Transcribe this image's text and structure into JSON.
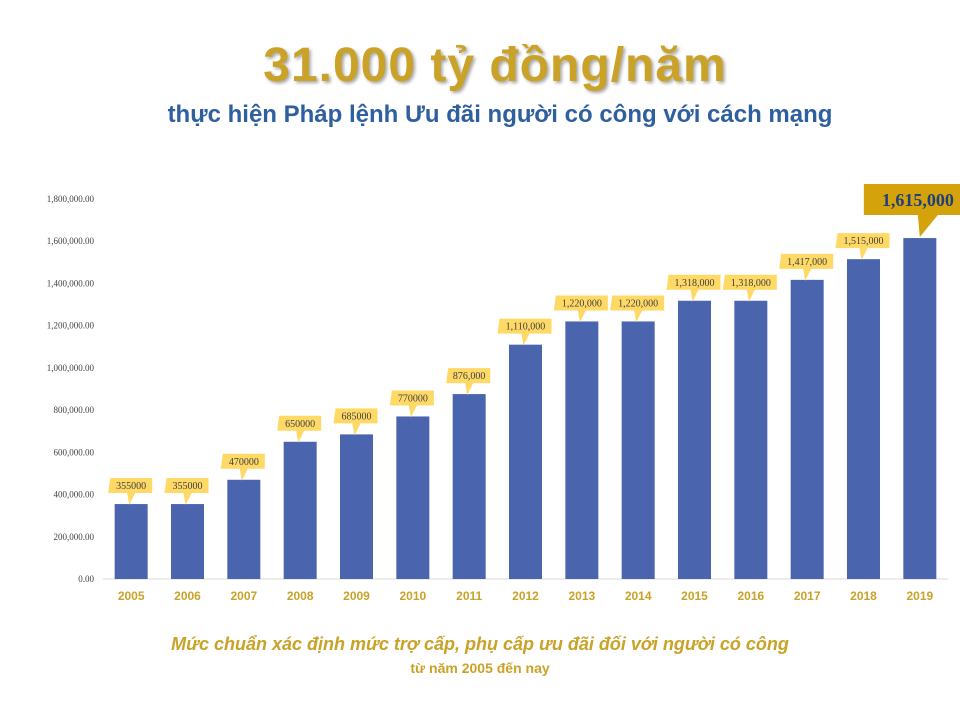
{
  "header": {
    "title": "31.000 tỷ đồng/năm",
    "subtitle": "thực hiện Pháp lệnh Ưu đãi người có công với cách mạng"
  },
  "footer": {
    "caption": "Mức chuẩn xác định mức trợ cấp, phụ cấp ưu đãi đối với người có công",
    "caption_sub": "từ năm 2005 đến nay"
  },
  "colors": {
    "bar": "#4a65ad",
    "label_bg": "#ffd966",
    "highlight_bg": "#d4a20a",
    "highlight_text": "#1f3f7a",
    "title": "#c9a227",
    "subtitle": "#2e5f9e",
    "axis_text": "#c9a227"
  },
  "chart_data": {
    "type": "bar",
    "categories": [
      "2005",
      "2006",
      "2007",
      "2008",
      "2009",
      "2010",
      "2011",
      "2012",
      "2013",
      "2014",
      "2015",
      "2016",
      "2017",
      "2018",
      "2019"
    ],
    "values": [
      355000,
      355000,
      470000,
      650000,
      685000,
      770000,
      876000,
      1110000,
      1220000,
      1220000,
      1318000,
      1318000,
      1417000,
      1515000,
      1615000
    ],
    "data_labels": [
      "355000",
      "355000",
      "470000",
      "650000",
      "685000",
      "770000",
      "876,000",
      "1,110,000",
      "1,220,000",
      "1,220,000",
      "1,318,000",
      "1,318,000",
      "1,417,000",
      "1,515,000",
      "1,615,000"
    ],
    "highlight_index": 14,
    "ylim": [
      0,
      1800000
    ],
    "yticks": [
      0,
      200000,
      400000,
      600000,
      800000,
      1000000,
      1200000,
      1400000,
      1600000,
      1800000
    ],
    "ytick_labels": [
      "0.00",
      "200,000.00",
      "400,000.00",
      "600,000.00",
      "800,000.00",
      "1,000,000.00",
      "1,200,000.00",
      "1,400,000.00",
      "1,600,000.00",
      "1,800,000.00"
    ],
    "grid": false,
    "legend": "none"
  }
}
